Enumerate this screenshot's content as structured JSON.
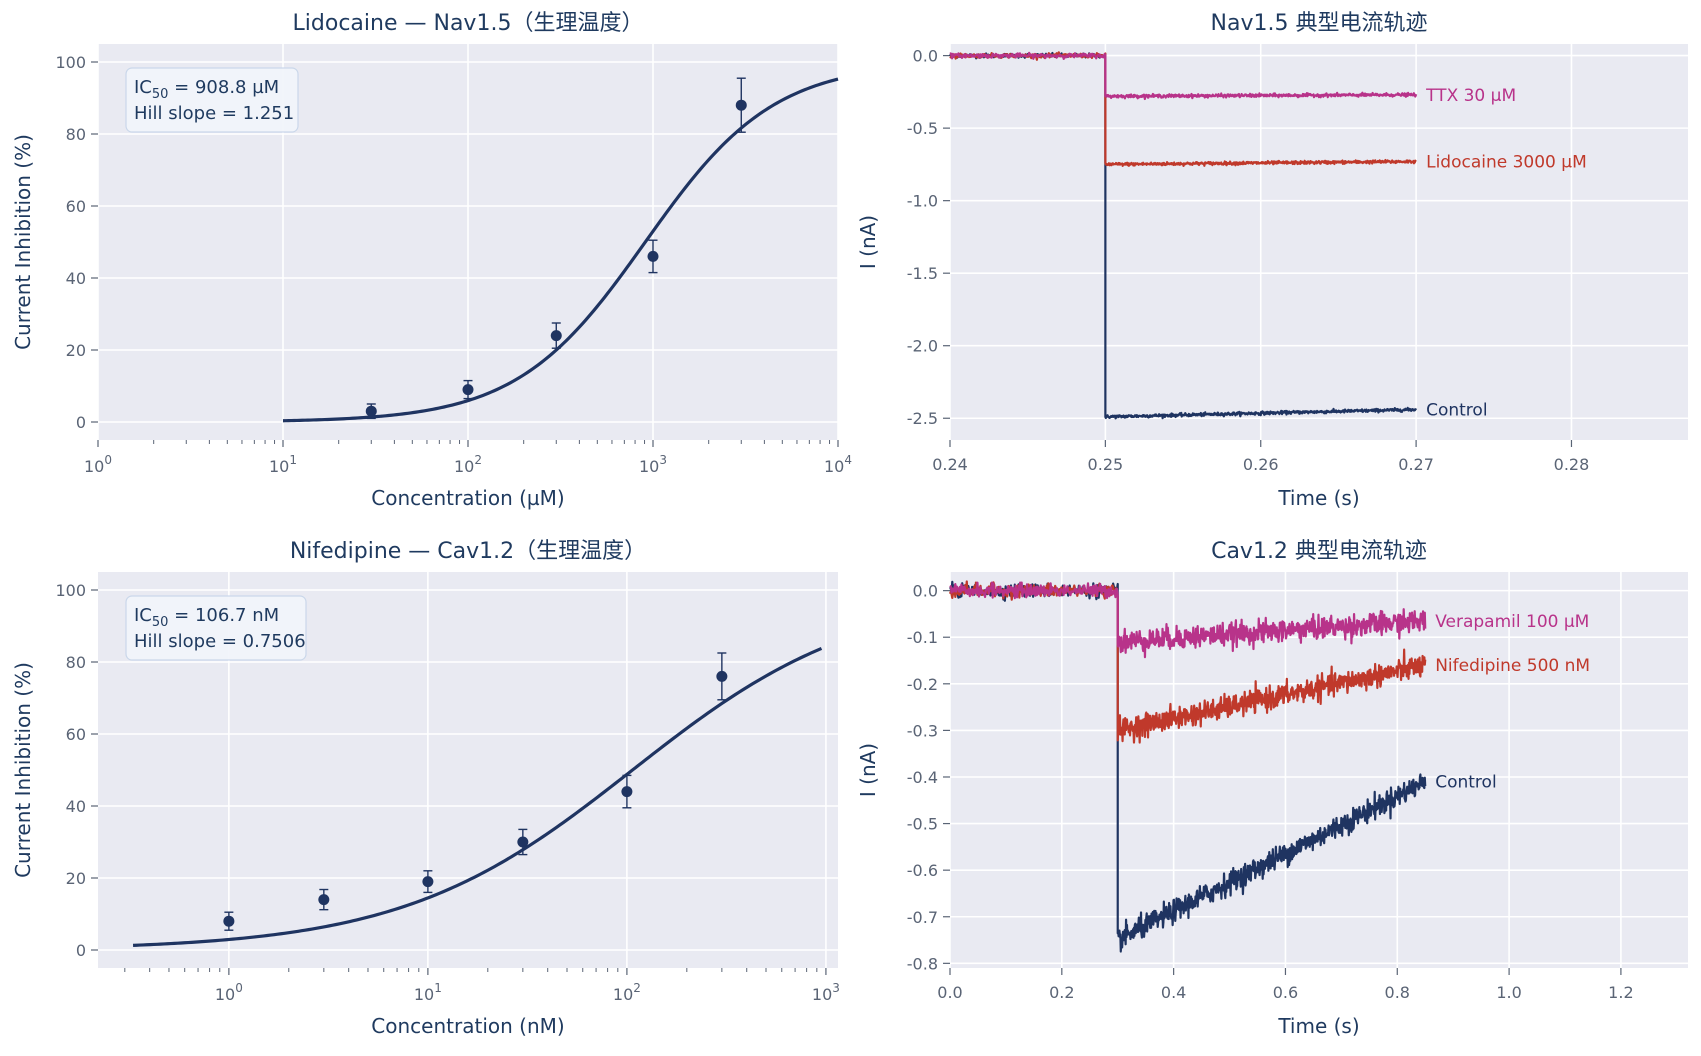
{
  "colors": {
    "navy": "#1f3461",
    "red": "#c0392b",
    "magenta": "#b8338a",
    "panel_bg": "#e9eaf2",
    "grid": "#ffffff"
  },
  "chart_data": [
    {
      "type": "scatter",
      "title": "Lidocaine — Nav1.5（生理温度）",
      "xlabel": "Concentration (µM)",
      "ylabel": "Current Inhibition (%)",
      "xscale": "log",
      "xlim": [
        1,
        10000
      ],
      "ylim": [
        -5,
        105
      ],
      "xticks": [
        1,
        10,
        100,
        1000,
        10000
      ],
      "yticks": [
        0,
        20,
        40,
        60,
        80,
        100
      ],
      "grid": true,
      "points": [
        {
          "x": 30,
          "y": 3,
          "err": 2
        },
        {
          "x": 100,
          "y": 9,
          "err": 2.5
        },
        {
          "x": 300,
          "y": 24,
          "err": 3.5
        },
        {
          "x": 1000,
          "y": 46,
          "err": 4.5
        },
        {
          "x": 3000,
          "y": 88,
          "err": 7.5
        }
      ],
      "fit": {
        "ic50": 908.8,
        "hill": 1.251,
        "xmin": 10,
        "xmax": 10000
      },
      "annotation": {
        "ic50_prefix": "IC",
        "ic50_sub": "50",
        "ic50_value": " = 908.8 µM",
        "hill_text": "Hill slope = 1.251"
      }
    },
    {
      "type": "line",
      "title": "Nav1.5 典型电流轨迹",
      "xlabel": "Time (s)",
      "ylabel": "I (nA)",
      "xlim": [
        0.24,
        0.2875
      ],
      "ylim": [
        -2.65,
        0.08
      ],
      "xticks": [
        0.24,
        0.25,
        0.26,
        0.27,
        0.28
      ],
      "xtick_labels": [
        "0.24",
        "0.25",
        "0.26",
        "0.27",
        "0.28"
      ],
      "yticks": [
        0.0,
        -0.5,
        -1.0,
        -1.5,
        -2.0,
        -2.5
      ],
      "ytick_labels": [
        "0.0",
        "-0.5",
        "-1.0",
        "-1.5",
        "-2.0",
        "-2.5"
      ],
      "grid": true,
      "series": [
        {
          "name": "Control",
          "color_key": "navy",
          "baseline": 0.0,
          "step_time": 0.25,
          "level_start": -2.49,
          "level_end": -2.44,
          "t_end": 0.27,
          "noise": 0.012
        },
        {
          "name": "Lidocaine 3000 µM",
          "color_key": "red",
          "baseline": 0.0,
          "step_time": 0.25,
          "level_start": -0.75,
          "level_end": -0.73,
          "t_end": 0.27,
          "noise": 0.012
        },
        {
          "name": "TTX 30 µM",
          "color_key": "magenta",
          "baseline": 0.0,
          "step_time": 0.25,
          "level_start": -0.28,
          "level_end": -0.27,
          "t_end": 0.27,
          "noise": 0.012
        }
      ]
    },
    {
      "type": "scatter",
      "title": "Nifedipine — Cav1.2（生理温度）",
      "xlabel": "Concentration (nM)",
      "ylabel": "Current Inhibition (%)",
      "xscale": "log",
      "xlim": [
        0.22,
        1150
      ],
      "ylim": [
        -5,
        105
      ],
      "xticks": [
        1,
        10,
        100,
        1000
      ],
      "yticks": [
        0,
        20,
        40,
        60,
        80,
        100
      ],
      "grid": true,
      "points": [
        {
          "x": 1,
          "y": 8,
          "err": 2.5
        },
        {
          "x": 3,
          "y": 14,
          "err": 2.8
        },
        {
          "x": 10,
          "y": 19,
          "err": 3
        },
        {
          "x": 30,
          "y": 30,
          "err": 3.5
        },
        {
          "x": 100,
          "y": 44,
          "err": 4.5
        },
        {
          "x": 300,
          "y": 76,
          "err": 6.5
        }
      ],
      "fit": {
        "ic50": 106.7,
        "hill": 0.7506,
        "xmin": 0.33,
        "xmax": 950
      },
      "annotation": {
        "ic50_prefix": "IC",
        "ic50_sub": "50",
        "ic50_value": " = 106.7 nM",
        "hill_text": "Hill slope = 0.7506"
      }
    },
    {
      "type": "line",
      "title": "Cav1.2 典型电流轨迹",
      "xlabel": "Time (s)",
      "ylabel": "I (nA)",
      "xlim": [
        0.0,
        1.32
      ],
      "ylim": [
        -0.81,
        0.04
      ],
      "xticks": [
        0.0,
        0.2,
        0.4,
        0.6,
        0.8,
        1.0,
        1.2
      ],
      "xtick_labels": [
        "0.0",
        "0.2",
        "0.4",
        "0.6",
        "0.8",
        "1.0",
        "1.2"
      ],
      "yticks": [
        0.0,
        -0.1,
        -0.2,
        -0.3,
        -0.4,
        -0.5,
        -0.6,
        -0.7,
        -0.8
      ],
      "ytick_labels": [
        "0.0",
        "-0.1",
        "-0.2",
        "-0.3",
        "-0.4",
        "-0.5",
        "-0.6",
        "-0.7",
        "-0.8"
      ],
      "grid": true,
      "series": [
        {
          "name": "Control",
          "color_key": "navy",
          "baseline": 0.0,
          "step_time": 0.3,
          "level_start": -0.75,
          "level_end": -0.41,
          "t_end": 0.85,
          "noise": 0.012
        },
        {
          "name": "Nifedipine 500 nM",
          "color_key": "red",
          "baseline": 0.0,
          "step_time": 0.3,
          "level_start": -0.3,
          "level_end": -0.16,
          "t_end": 0.85,
          "noise": 0.012
        },
        {
          "name": "Verapamil 100 µM",
          "color_key": "magenta",
          "baseline": 0.0,
          "step_time": 0.3,
          "level_start": -0.11,
          "level_end": -0.065,
          "t_end": 0.85,
          "noise": 0.012
        }
      ]
    }
  ]
}
